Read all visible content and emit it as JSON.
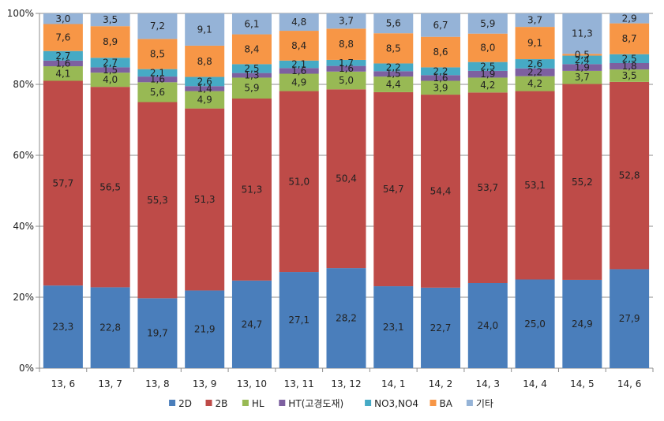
{
  "chart_data": {
    "type": "bar",
    "stacked": true,
    "percent": true,
    "title": "",
    "xlabel": "",
    "ylabel": "",
    "ylim": [
      0,
      100
    ],
    "yticks": [
      "0%",
      "20%",
      "40%",
      "60%",
      "80%",
      "100%"
    ],
    "grid": true,
    "legend_position": "bottom",
    "categories": [
      "13, 6",
      "13, 7",
      "13, 8",
      "13, 9",
      "13, 10",
      "13, 11",
      "13, 12",
      "14, 1",
      "14, 2",
      "14, 3",
      "14, 4",
      "14, 5",
      "14, 6"
    ],
    "series": [
      {
        "name": "2D",
        "color": "#4a7ebb",
        "values": [
          23.3,
          22.8,
          19.7,
          21.9,
          24.7,
          27.1,
          28.2,
          23.1,
          22.7,
          24.0,
          25.0,
          24.9,
          27.9
        ],
        "labels": [
          "23,3",
          "22,8",
          "19,7",
          "21,9",
          "24,7",
          "27,1",
          "28,2",
          "23,1",
          "22,7",
          "24,0",
          "25,0",
          "24,9",
          "27,9"
        ]
      },
      {
        "name": "2B",
        "color": "#be4b48",
        "values": [
          57.7,
          56.5,
          55.3,
          51.3,
          51.3,
          51.0,
          50.4,
          54.7,
          54.4,
          53.7,
          53.1,
          55.2,
          52.8
        ],
        "labels": [
          "57,7",
          "56,5",
          "55,3",
          "51,3",
          "51,3",
          "51,0",
          "50,4",
          "54,7",
          "54,4",
          "53,7",
          "53,1",
          "55,2",
          "52,8"
        ]
      },
      {
        "name": "HL",
        "color": "#98b954",
        "values": [
          4.1,
          4.0,
          5.6,
          4.9,
          5.9,
          4.9,
          5.0,
          4.4,
          3.9,
          4.2,
          4.2,
          3.7,
          3.5
        ],
        "labels": [
          "4,1",
          "4,0",
          "5,6",
          "4,9",
          "5,9",
          "4,9",
          "5,0",
          "4,4",
          "3,9",
          "4,2",
          "4,2",
          "3,7",
          "3,5"
        ]
      },
      {
        "name": "HT(고경도재)",
        "color": "#7d60a0",
        "values": [
          1.6,
          1.5,
          1.6,
          1.4,
          1.3,
          1.6,
          1.6,
          1.5,
          1.6,
          1.9,
          2.2,
          1.9,
          1.8
        ],
        "labels": [
          "1,6",
          "1,5",
          "1,6",
          "1,4",
          "1,3",
          "1,6",
          "1,6",
          "1,5",
          "1,6",
          "1,9",
          "2,2",
          "1,9",
          "1,8"
        ]
      },
      {
        "name": "NO3,NO4",
        "color": "#46aac5",
        "values": [
          2.7,
          2.7,
          2.1,
          2.6,
          2.5,
          2.1,
          1.7,
          2.2,
          2.2,
          2.5,
          2.6,
          2.4,
          2.5
        ],
        "labels": [
          "2,7",
          "2,7",
          "2,1",
          "2,6",
          "2,5",
          "2,1",
          "1,7",
          "2,2",
          "2,2",
          "2,5",
          "2,6",
          "2,4",
          "2,5"
        ]
      },
      {
        "name": "BA",
        "color": "#f79646",
        "values": [
          7.6,
          8.9,
          8.5,
          8.8,
          8.4,
          8.4,
          8.8,
          8.5,
          8.6,
          8.0,
          9.1,
          0.5,
          8.7
        ],
        "labels": [
          "7,6",
          "8,9",
          "8,5",
          "8,8",
          "8,4",
          "8,4",
          "8,8",
          "8,5",
          "8,6",
          "8,0",
          "9,1",
          "0,5",
          "8,7"
        ]
      },
      {
        "name": "기타",
        "color": "#95b3d7",
        "values": [
          3.0,
          3.5,
          7.2,
          9.1,
          6.1,
          4.8,
          3.7,
          5.6,
          6.7,
          5.9,
          3.7,
          11.3,
          2.9
        ],
        "labels": [
          "3,0",
          "3,5",
          "7,2",
          "9,1",
          "6,1",
          "4,8",
          "3,7",
          "5,6",
          "6,7",
          "5,9",
          "3,7",
          "11,3",
          "2,9"
        ]
      }
    ]
  }
}
